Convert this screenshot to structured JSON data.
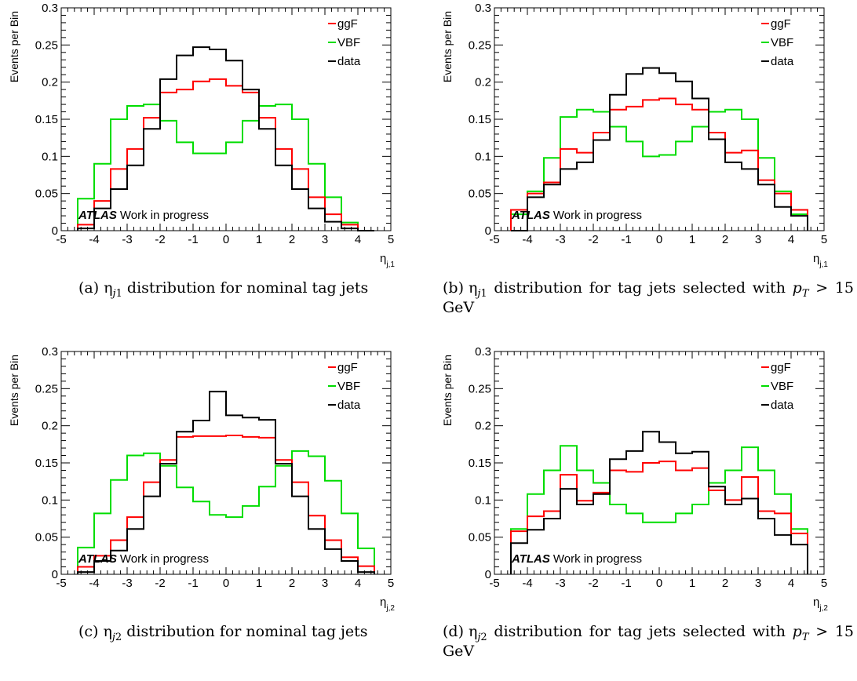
{
  "colors": {
    "ggF": "#ff0000",
    "VBF": "#00dd00",
    "data": "#000000",
    "axis": "#000000"
  },
  "chart_data": [
    {
      "id": "a",
      "type": "histogram",
      "caption": {
        "label": "(a)",
        "line1": "distribution for nominal tag jets",
        "line2": ""
      },
      "xlabel": "η",
      "xlabel_sub": "j,1",
      "ylabel": "Events per Bin",
      "xlim": [
        -5,
        5
      ],
      "ylim": [
        0,
        0.3
      ],
      "xticks": [
        "-5",
        "-4",
        "-3",
        "-2",
        "-1",
        "0",
        "1",
        "2",
        "3",
        "4",
        "5"
      ],
      "yticks": [
        "0",
        "0.05",
        "0.1",
        "0.15",
        "0.2",
        "0.25",
        "0.3"
      ],
      "annotation": {
        "bold": "ATLAS",
        "text": "Work in progress"
      },
      "bin_edges": [
        -4.5,
        -4,
        -3.5,
        -3,
        -2.5,
        -2,
        -1.5,
        -1,
        -0.5,
        0,
        0.5,
        1,
        1.5,
        2,
        2.5,
        3,
        3.5,
        4,
        4.5
      ],
      "series": [
        {
          "name": "ggF",
          "values": [
            0.008,
            0.04,
            0.083,
            0.11,
            0.152,
            0.186,
            0.19,
            0.201,
            0.204,
            0.195,
            0.186,
            0.152,
            0.11,
            0.083,
            0.045,
            0.022,
            0.008,
            0
          ]
        },
        {
          "name": "VBF",
          "values": [
            0.043,
            0.09,
            0.15,
            0.168,
            0.17,
            0.148,
            0.119,
            0.104,
            0.104,
            0.119,
            0.148,
            0.168,
            0.17,
            0.15,
            0.09,
            0.045,
            0.011,
            0
          ]
        },
        {
          "name": "data",
          "values": [
            0.003,
            0.03,
            0.056,
            0.088,
            0.137,
            0.204,
            0.236,
            0.247,
            0.244,
            0.229,
            0.19,
            0.137,
            0.088,
            0.056,
            0.03,
            0.012,
            0.003,
            0
          ]
        }
      ]
    },
    {
      "id": "b",
      "type": "histogram",
      "caption": {
        "label": "(b)",
        "line1": "distribution for tag jets selected with",
        "line2": "15 GeV"
      },
      "xlabel": "η",
      "xlabel_sub": "j,1",
      "ylabel": "Events per Bin",
      "xlim": [
        -5,
        5
      ],
      "ylim": [
        0,
        0.3
      ],
      "xticks": [
        "-5",
        "-4",
        "-3",
        "-2",
        "-1",
        "0",
        "1",
        "2",
        "3",
        "4",
        "5"
      ],
      "yticks": [
        "0",
        "0.05",
        "0.1",
        "0.15",
        "0.2",
        "0.25",
        "0.3"
      ],
      "annotation": {
        "bold": "ATLAS",
        "text": "Work in progress"
      },
      "bin_edges": [
        -4.5,
        -4,
        -3.5,
        -3,
        -2.5,
        -2,
        -1.5,
        -1,
        -0.5,
        0,
        0.5,
        1,
        1.5,
        2,
        2.5,
        3,
        3.5,
        4,
        4.5
      ],
      "series": [
        {
          "name": "ggF",
          "values": [
            0.028,
            0.05,
            0.065,
            0.11,
            0.105,
            0.132,
            0.163,
            0.167,
            0.176,
            0.178,
            0.17,
            0.163,
            0.132,
            0.105,
            0.108,
            0.068,
            0.05,
            0.028
          ]
        },
        {
          "name": "VBF",
          "values": [
            0.022,
            0.053,
            0.098,
            0.153,
            0.163,
            0.16,
            0.14,
            0.12,
            0.1,
            0.102,
            0.12,
            0.14,
            0.16,
            0.163,
            0.15,
            0.098,
            0.053,
            0.022
          ]
        },
        {
          "name": "data",
          "values": [
            0,
            0.045,
            0.062,
            0.083,
            0.092,
            0.122,
            0.183,
            0.211,
            0.219,
            0.212,
            0.201,
            0.178,
            0.123,
            0.092,
            0.083,
            0.062,
            0.032,
            0.02
          ]
        }
      ]
    },
    {
      "id": "c",
      "type": "histogram",
      "caption": {
        "label": "(c)",
        "line1": "distribution for nominal tag jets",
        "line2": ""
      },
      "xlabel": "η",
      "xlabel_sub": "j,2",
      "ylabel": "Events per Bin",
      "xlim": [
        -5,
        5
      ],
      "ylim": [
        0,
        0.3
      ],
      "xticks": [
        "-5",
        "-4",
        "-3",
        "-2",
        "-1",
        "0",
        "1",
        "2",
        "3",
        "4",
        "5"
      ],
      "yticks": [
        "0",
        "0.05",
        "0.1",
        "0.15",
        "0.2",
        "0.25",
        "0.3"
      ],
      "annotation": {
        "bold": "ATLAS",
        "text": "Work in progress"
      },
      "bin_edges": [
        -4.5,
        -4,
        -3.5,
        -3,
        -2.5,
        -2,
        -1.5,
        -1,
        -0.5,
        0,
        0.5,
        1,
        1.5,
        2,
        2.5,
        3,
        3.5,
        4,
        4.5
      ],
      "series": [
        {
          "name": "ggF",
          "values": [
            0.01,
            0.025,
            0.046,
            0.077,
            0.124,
            0.154,
            0.185,
            0.186,
            0.186,
            0.187,
            0.185,
            0.184,
            0.154,
            0.124,
            0.079,
            0.046,
            0.023,
            0.011
          ]
        },
        {
          "name": "VBF",
          "values": [
            0.036,
            0.082,
            0.127,
            0.16,
            0.163,
            0.146,
            0.117,
            0.098,
            0.08,
            0.077,
            0.092,
            0.118,
            0.146,
            0.166,
            0.159,
            0.126,
            0.082,
            0.035
          ]
        },
        {
          "name": "data",
          "values": [
            0.003,
            0.018,
            0.032,
            0.061,
            0.105,
            0.149,
            0.192,
            0.207,
            0.246,
            0.214,
            0.211,
            0.208,
            0.149,
            0.105,
            0.061,
            0.034,
            0.018,
            0.003
          ]
        }
      ]
    },
    {
      "id": "d",
      "type": "histogram",
      "caption": {
        "label": "(d)",
        "line1": "distribution for tag jets selected with",
        "line2": "15 GeV"
      },
      "xlabel": "η",
      "xlabel_sub": "j,2",
      "ylabel": "Events per Bin",
      "xlim": [
        -5,
        5
      ],
      "ylim": [
        0,
        0.3
      ],
      "xticks": [
        "-5",
        "-4",
        "-3",
        "-2",
        "-1",
        "0",
        "1",
        "2",
        "3",
        "4",
        "5"
      ],
      "yticks": [
        "0",
        "0.05",
        "0.1",
        "0.15",
        "0.2",
        "0.25",
        "0.3"
      ],
      "annotation": {
        "bold": "ATLAS",
        "text": "Work in progress"
      },
      "bin_edges": [
        -4.5,
        -4,
        -3.5,
        -3,
        -2.5,
        -2,
        -1.5,
        -1,
        -0.5,
        0,
        0.5,
        1,
        1.5,
        2,
        2.5,
        3,
        3.5,
        4,
        4.5
      ],
      "series": [
        {
          "name": "ggF",
          "values": [
            0.058,
            0.078,
            0.085,
            0.134,
            0.099,
            0.11,
            0.14,
            0.138,
            0.15,
            0.152,
            0.14,
            0.143,
            0.113,
            0.1,
            0.131,
            0.085,
            0.082,
            0.055
          ]
        },
        {
          "name": "VBF",
          "values": [
            0.061,
            0.108,
            0.14,
            0.173,
            0.14,
            0.123,
            0.094,
            0.082,
            0.07,
            0.07,
            0.082,
            0.094,
            0.123,
            0.14,
            0.171,
            0.14,
            0.108,
            0.061
          ]
        },
        {
          "name": "data",
          "values": [
            0.042,
            0.06,
            0.075,
            0.115,
            0.094,
            0.108,
            0.155,
            0.166,
            0.192,
            0.178,
            0.163,
            0.165,
            0.118,
            0.094,
            0.102,
            0.075,
            0.053,
            0.04
          ]
        }
      ]
    }
  ]
}
